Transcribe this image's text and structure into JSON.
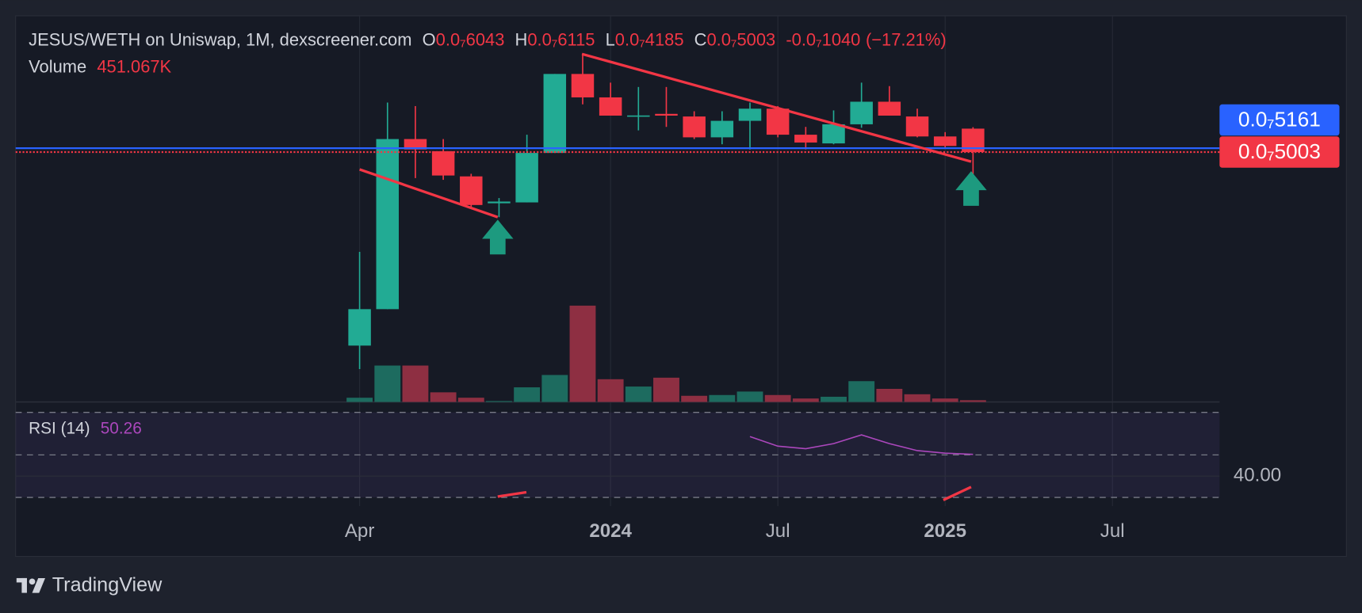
{
  "chart_data": {
    "type": "candlestick",
    "title": "JESUS/WETH on Uniswap, 1M, dexscreener.com",
    "legend": [
      {
        "key": "O",
        "value": 6.043e-08,
        "label": "0.0₇6043"
      },
      {
        "key": "H",
        "value": 6.115e-08,
        "label": "0.0₇6115"
      },
      {
        "key": "L",
        "value": 4.185e-08,
        "label": "0.0₇4185"
      },
      {
        "key": "C",
        "value": 5.003e-08,
        "label": "0.0₇5003"
      }
    ],
    "change": {
      "value": -1.04e-08,
      "label": "-0.0₇1040"
    },
    "change_pct": {
      "value": -17.21,
      "label": "(−17.21%)"
    },
    "volume_legend": {
      "name": "Volume",
      "value": 451067,
      "label": "451.067K"
    },
    "x": [
      "2023-04",
      "2023-05",
      "2023-06",
      "2023-07",
      "2023-08",
      "2023-09",
      "2023-10",
      "2023-11",
      "2023-12",
      "2024-01",
      "2024-02",
      "2024-03",
      "2024-04",
      "2024-05",
      "2024-06",
      "2024-07",
      "2024-08",
      "2024-09",
      "2024-10",
      "2024-11",
      "2024-12",
      "2025-01",
      "2025-02"
    ],
    "open": [
      1.052e-08,
      1.411e-08,
      5.556e-08,
      5.038e-08,
      4.113e-08,
      3.312e-08,
      3.335e-08,
      4.968e-08,
      9.388e-08,
      7.773e-08,
      6.711e-08,
      6.806e-08,
      6.664e-08,
      5.634e-08,
      6.435e-08,
      7.097e-08,
      5.754e-08,
      5.365e-08,
      6.258e-08,
      7.506e-08,
      6.664e-08,
      5.674e-08,
      6.043e-08
    ],
    "high": [
      2.239e-08,
      7.453e-08,
      7.247e-08,
      5.556e-08,
      4.2e-08,
      3.454e-08,
      5.754e-08,
      9.388e-08,
      1.103e-07,
      8.753e-08,
      8.453e-08,
      8.453e-08,
      6.95e-08,
      6.95e-08,
      7.453e-08,
      7.247e-08,
      6.128e-08,
      6.999e-08,
      8.753e-08,
      8.512e-08,
      7.097e-08,
      5.876e-08,
      6.115e-08
    ],
    "low": [
      8.71e-09,
      1.411e-08,
      4.056e-08,
      4e-08,
      3.22e-08,
      2.961e-08,
      3.335e-08,
      4.968e-08,
      7.349e-08,
      6.711e-08,
      5.959e-08,
      6.128e-08,
      5.556e-08,
      5.328e-08,
      5.109e-08,
      5.634e-08,
      5.109e-08,
      5.328e-08,
      6.085e-08,
      6.711e-08,
      5.634e-08,
      5.181e-08,
      4.185e-08
    ],
    "close": [
      1.411e-08,
      5.556e-08,
      5.109e-08,
      4.142e-08,
      3.266e-08,
      3.358e-08,
      4.968e-08,
      9.388e-08,
      7.773e-08,
      6.711e-08,
      6.72e-08,
      6.711e-08,
      5.634e-08,
      6.435e-08,
      7.097e-08,
      5.754e-08,
      5.403e-08,
      6.258e-08,
      7.506e-08,
      6.711e-08,
      5.674e-08,
      5.254e-08,
      5.003e-08
    ],
    "volume": [
      1100000,
      9450000,
      9450000,
      2500000,
      1100000,
      230000,
      3800000,
      7000000,
      25000000,
      5900000,
      4000000,
      6300000,
      1600000,
      1800000,
      2700000,
      1800000,
      900000,
      1350000,
      5400000,
      3400000,
      2000000,
      900000,
      451067
    ],
    "colors": {
      "up": "#22ab94",
      "down": "#f23645",
      "volume_up": "#1d6b5f",
      "volume_down": "#8e2f42"
    },
    "log_scale": true,
    "ylim": [
      6.68e-09,
      1.5e-07
    ],
    "volume_ylim": [
      0,
      50000000
    ],
    "price_lines": [
      {
        "value": 5.161e-08,
        "label": "0.0₇5161",
        "color": "#2962ff"
      },
      {
        "value": 5.003e-08,
        "label": "0.0₇5003",
        "color": "#f23645"
      }
    ],
    "xticks": [
      {
        "value": "2023-04",
        "label": "Apr"
      },
      {
        "value": "2024-01",
        "label": "2024"
      },
      {
        "value": "2024-07",
        "label": "Jul"
      },
      {
        "value": "2025-01",
        "label": "2025"
      },
      {
        "value": "2025-07",
        "label": "Jul"
      }
    ],
    "grid": true,
    "rsi": {
      "name": "RSI (14)",
      "color": "#ab47bc",
      "x": [
        "2024-06",
        "2024-07",
        "2024-08",
        "2024-09",
        "2024-10",
        "2024-11",
        "2024-12",
        "2025-01",
        "2025-02"
      ],
      "values": [
        58.6,
        54.1,
        52.9,
        55.3,
        59.4,
        55.3,
        52.0,
        50.8,
        50.26
      ],
      "ylim": [
        30,
        70
      ],
      "bands": [
        70,
        50,
        30
      ],
      "ticks": [
        {
          "value": 40,
          "label": "40.00"
        }
      ]
    },
    "brand": "TradingView"
  }
}
